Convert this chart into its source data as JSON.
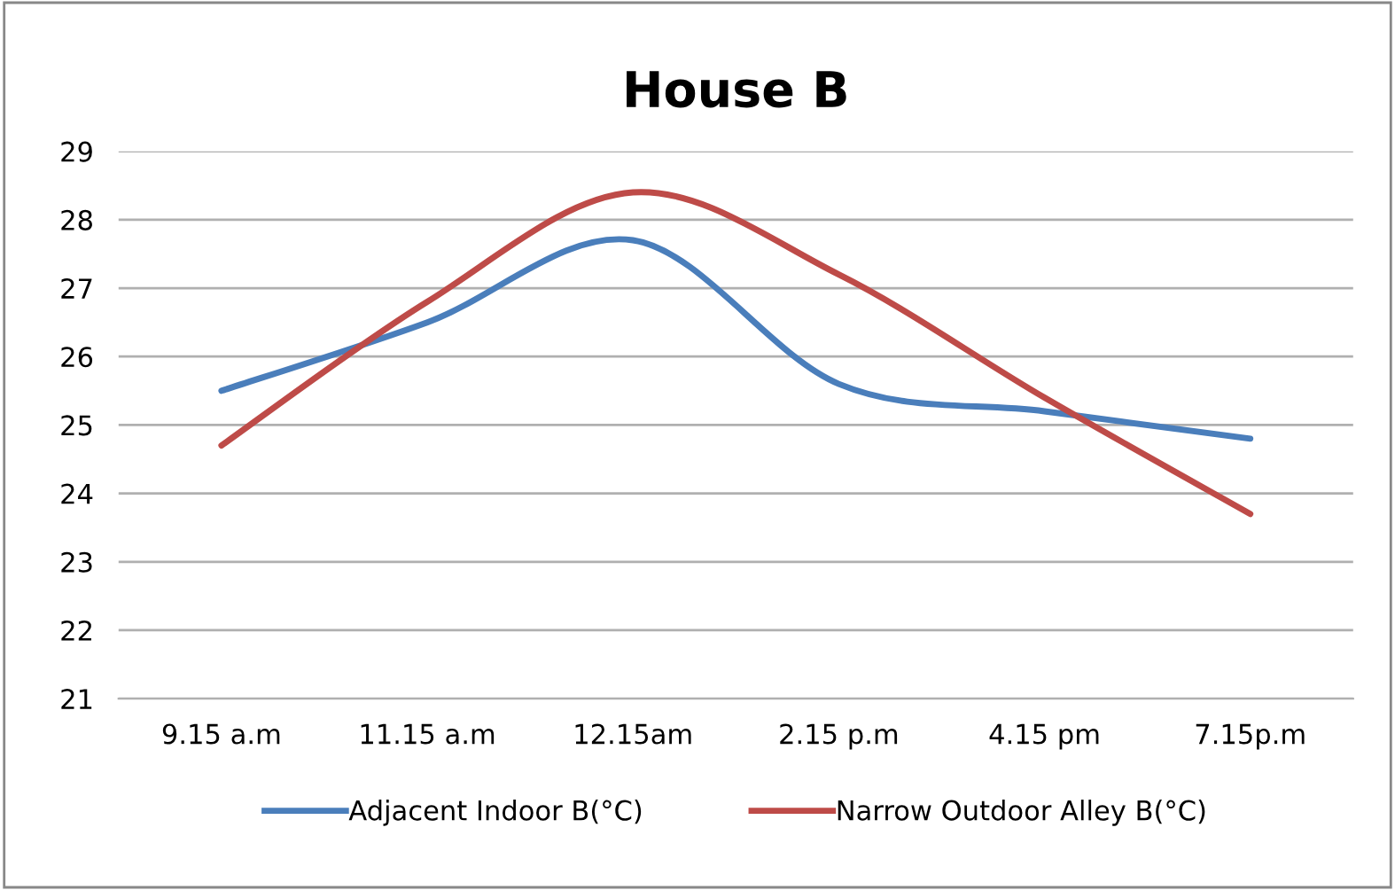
{
  "chart_data": {
    "type": "line",
    "title": "House B",
    "categories": [
      "9.15 a.m",
      "11.15 a.m",
      "12.15am",
      "2.15 p.m",
      "4.15 pm",
      "7.15p.m"
    ],
    "series": [
      {
        "name": "Adjacent Indoor B(°C)",
        "color": "#4a7ebb",
        "values": [
          25.5,
          26.5,
          27.7,
          25.6,
          25.2,
          24.8
        ]
      },
      {
        "name": "Narrow Outdoor Alley B(°C)",
        "color": "#be4b48",
        "values": [
          24.7,
          26.8,
          28.4,
          27.2,
          25.4,
          23.7
        ]
      }
    ],
    "ylim": [
      21,
      29
    ],
    "yticks": [
      21,
      22,
      23,
      24,
      25,
      26,
      27,
      28,
      29
    ],
    "grid": "y",
    "legend": "bottom",
    "marker": "none",
    "line_style": "solid"
  }
}
